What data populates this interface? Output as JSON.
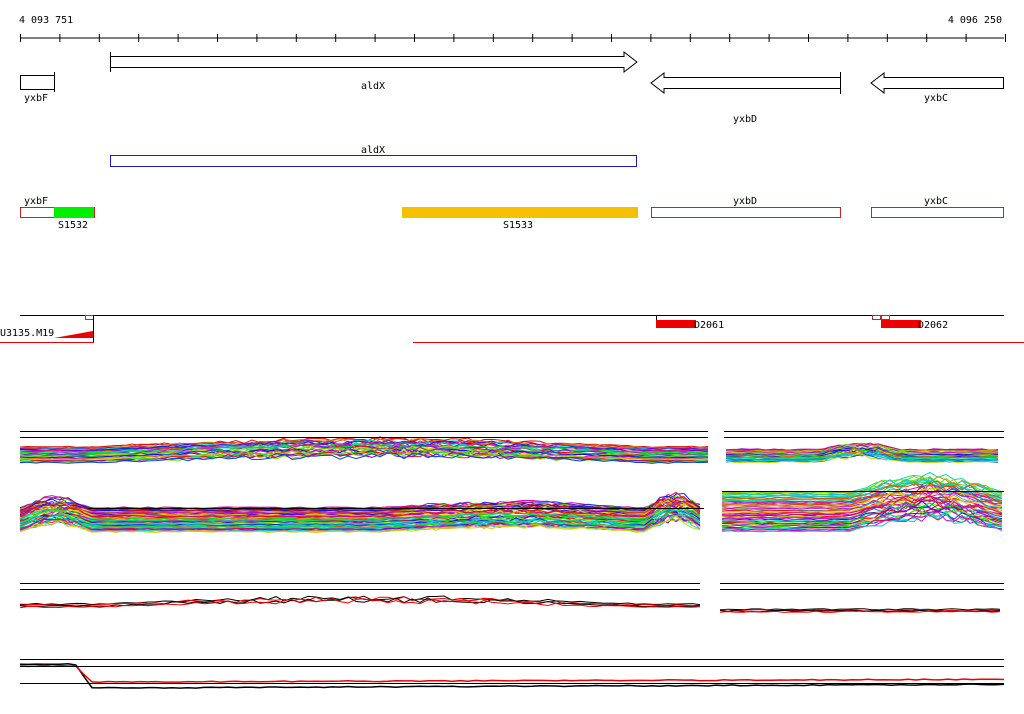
{
  "ruler": {
    "start_label": "4 093 751",
    "end_label": "4 096 250"
  },
  "genes": {
    "yxbF": "yxbF",
    "aldX": "aldX",
    "yxbD": "yxbD",
    "yxbC": "yxbC"
  },
  "annotation": {
    "aldX": "aldX"
  },
  "segments": {
    "yxbF": "yxbF",
    "S1532": "S1532",
    "S1533": "S1533",
    "yxbD": "yxbD",
    "yxbC": "yxbC"
  },
  "probes": {
    "left": "U3135.M19",
    "mid": "D2061",
    "right": "D2062"
  },
  "colors": {
    "gene_outline": "#000000",
    "annotation_blue": "#1a1acc",
    "segment_outline": "#cc2222",
    "segment_green": "#00ee00",
    "segment_orange": "#f5c000",
    "probe_red": "#ee0000",
    "track_line": "#000000"
  }
}
